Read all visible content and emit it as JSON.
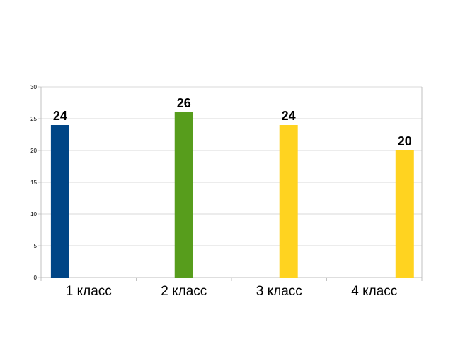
{
  "chart_data": {
    "type": "bar",
    "categories": [
      "1 класс",
      "2 класс",
      "3 класс",
      "4 класс"
    ],
    "values": [
      24,
      26,
      24,
      20
    ],
    "data_labels": [
      "24",
      "26",
      "24",
      "20"
    ],
    "colors": [
      "#004586",
      "#579d1c",
      "#ffd320",
      "#ffd320"
    ],
    "ylim": [
      0,
      30
    ],
    "yticks": [
      "0",
      "5",
      "10",
      "15",
      "20",
      "25",
      "30"
    ],
    "ytick_values": [
      0,
      5,
      10,
      15,
      20,
      25,
      30
    ],
    "grid": true,
    "legend": "none",
    "title": "",
    "xlabel": "",
    "ylabel": ""
  }
}
